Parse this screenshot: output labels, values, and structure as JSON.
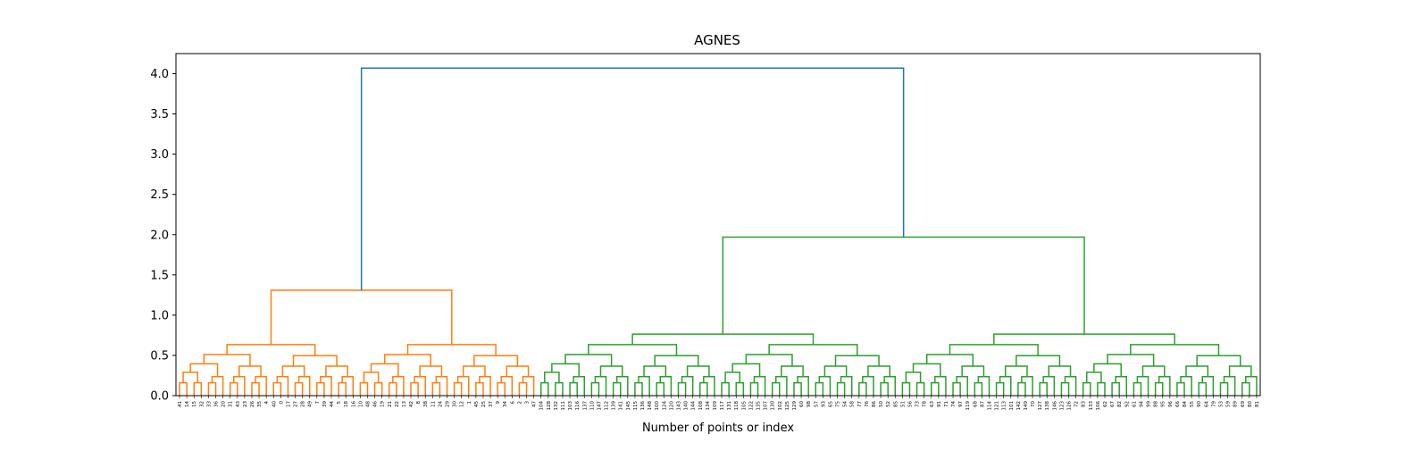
{
  "chart_data": {
    "type": "dendrogram",
    "title": "AGNES",
    "xlabel": "Number of points or index",
    "ylabel": "",
    "ylim": [
      0,
      4.25
    ],
    "yticks": [
      0.0,
      0.5,
      1.0,
      1.5,
      2.0,
      2.5,
      3.0,
      3.5,
      4.0
    ],
    "ytick_labels": [
      "0.0",
      "0.5",
      "1.0",
      "1.5",
      "2.0",
      "2.5",
      "3.0",
      "3.5",
      "4.0"
    ],
    "grid": false,
    "colors": {
      "orange_cluster": "#ff7f0e",
      "green_cluster": "#2ca02c",
      "root_link": "#1f77b4"
    },
    "leaf_order": [
      "41",
      "14",
      "15",
      "32",
      "33",
      "36",
      "20",
      "31",
      "43",
      "23",
      "26",
      "35",
      "4",
      "40",
      "0",
      "17",
      "27",
      "28",
      "49",
      "7",
      "39",
      "44",
      "5",
      "18",
      "16",
      "10",
      "48",
      "46",
      "19",
      "21",
      "22",
      "13",
      "42",
      "8",
      "38",
      "11",
      "24",
      "29",
      "30",
      "12",
      "1",
      "45",
      "25",
      "37",
      "9",
      "34",
      "6",
      "2",
      "3",
      "47",
      "104",
      "128",
      "132",
      "111",
      "103",
      "116",
      "137",
      "110",
      "147",
      "112",
      "139",
      "141",
      "145",
      "115",
      "136",
      "148",
      "100",
      "124",
      "120",
      "143",
      "140",
      "144",
      "108",
      "134",
      "109",
      "117",
      "131",
      "118",
      "105",
      "122",
      "135",
      "107",
      "130",
      "102",
      "125",
      "129",
      "60",
      "98",
      "57",
      "93",
      "65",
      "75",
      "54",
      "58",
      "77",
      "76",
      "86",
      "50",
      "52",
      "85",
      "51",
      "56",
      "73",
      "78",
      "63",
      "91",
      "71",
      "74",
      "97",
      "119",
      "68",
      "87",
      "114",
      "121",
      "113",
      "101",
      "142",
      "149",
      "70",
      "127",
      "138",
      "146",
      "123",
      "126",
      "72",
      "83",
      "133",
      "106",
      "62",
      "67",
      "82",
      "92",
      "61",
      "94",
      "99",
      "88",
      "95",
      "96",
      "66",
      "84",
      "55",
      "90",
      "64",
      "79",
      "53",
      "59",
      "89",
      "69",
      "80",
      "81"
    ],
    "cluster_heights": {
      "root": 4.07,
      "orange_cluster": 1.31,
      "green_cluster": 1.97
    }
  }
}
